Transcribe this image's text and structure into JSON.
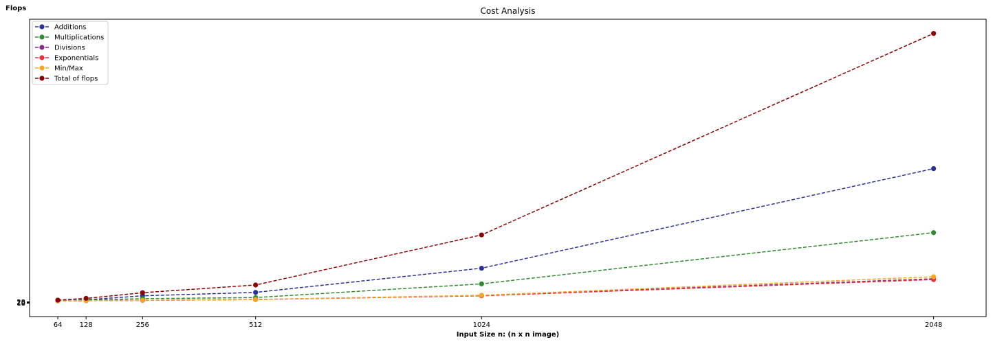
{
  "chart_data": {
    "type": "line",
    "title": "Cost Analysis",
    "xlabel": "Input Size n: (n x n image)",
    "ylabel": "Flops",
    "x": [
      64,
      128,
      256,
      512,
      1024,
      2048
    ],
    "x_tick_labels": [
      "64",
      "128",
      "256",
      "512",
      "1024",
      "2048"
    ],
    "y_tick_labels": [
      "18",
      "20",
      "28"
    ],
    "xlim": [
      0,
      2167
    ],
    "ylim": [
      -5.5,
      99
    ],
    "legend_placement": "top-left",
    "grid": false,
    "series": [
      {
        "name": "Additions",
        "color": "#2b2f99",
        "values": [
          0.1,
          0.4,
          1.8,
          3.0,
          11.5,
          46.5
        ]
      },
      {
        "name": "Multiplications",
        "color": "#2e8b2e",
        "values": [
          0.1,
          0.3,
          0.8,
          1.2,
          6.0,
          24.0
        ]
      },
      {
        "name": "Divisions",
        "color": "#8b2a8b",
        "values": [
          0.05,
          0.1,
          0.2,
          0.5,
          1.9,
          7.8
        ]
      },
      {
        "name": "Exponentials",
        "color": "#e8303a",
        "values": [
          0.05,
          0.1,
          0.2,
          0.5,
          1.8,
          7.5
        ]
      },
      {
        "name": "Min/Max",
        "color": "#f5a623",
        "values": [
          0.05,
          0.1,
          0.2,
          0.5,
          2.0,
          8.5
        ]
      },
      {
        "name": "Total of flops",
        "color": "#8b0000",
        "values": [
          0.3,
          0.9,
          2.9,
          5.6,
          23.2,
          94.0
        ]
      }
    ]
  }
}
